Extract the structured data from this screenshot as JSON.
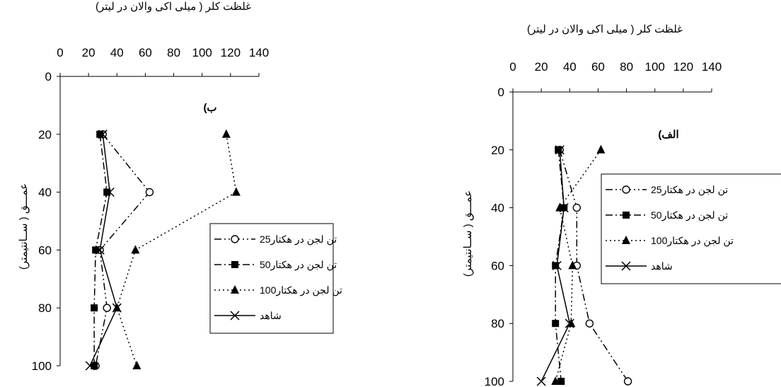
{
  "chart_data": [
    {
      "type": "line",
      "panel_label": "ب)",
      "x_title": "غلظت کلر ( میلی اکی والان در لیتر)",
      "y_title": "عمـــق ( ســانتیمتر)",
      "x_ticks": [
        "0",
        "20",
        "40",
        "60",
        "80",
        "100",
        "120",
        "140"
      ],
      "y_ticks": [
        "0",
        "20",
        "40",
        "60",
        "80",
        "100"
      ],
      "xlim": [
        0,
        140
      ],
      "ylim": [
        0,
        100
      ],
      "y_inverted": true,
      "x_axis_position": "top",
      "grid": false,
      "legend_position": "right",
      "series": [
        {
          "name": "25تن لجن در هکتار",
          "marker": "open-circle",
          "line": "dash-dot-dot",
          "points": [
            [
              30,
              20
            ],
            [
              63,
              40
            ],
            [
              28,
              60
            ],
            [
              33,
              80
            ],
            [
              25,
              100
            ]
          ]
        },
        {
          "name": "50تن لجن در هکتار",
          "marker": "filled-square",
          "line": "dash-dot",
          "points": [
            [
              28,
              20
            ],
            [
              33,
              40
            ],
            [
              25,
              60
            ],
            [
              24,
              80
            ],
            [
              24,
              100
            ]
          ]
        },
        {
          "name": "100تن لجن در هکتار",
          "marker": "filled-triangle",
          "line": "dotted",
          "points": [
            [
              117,
              20
            ],
            [
              124,
              40
            ],
            [
              53,
              60
            ],
            [
              40,
              80
            ],
            [
              54,
              100
            ]
          ]
        },
        {
          "name": "شاهد",
          "marker": "cross",
          "line": "solid",
          "points": [
            [
              30,
              20
            ],
            [
              35,
              40
            ],
            [
              28,
              60
            ],
            [
              40,
              80
            ],
            [
              21,
              100
            ]
          ]
        }
      ]
    },
    {
      "type": "line",
      "panel_label": "الف)",
      "x_title": "غلظت کلر ( میلی اکی والان در لیتر)",
      "y_title": "عمـــق ( ســانتیمتر)",
      "x_ticks": [
        "0",
        "20",
        "40",
        "60",
        "80",
        "100",
        "120",
        "140"
      ],
      "y_ticks": [
        "0",
        "20",
        "40",
        "60",
        "80",
        "100"
      ],
      "xlim": [
        0,
        140
      ],
      "ylim": [
        0,
        100
      ],
      "y_inverted": true,
      "x_axis_position": "top",
      "grid": false,
      "legend_position": "right",
      "series": [
        {
          "name": "25تن لجن در هکتار",
          "marker": "open-circle",
          "line": "dash-dot-dot",
          "points": [
            [
              33,
              20
            ],
            [
              45,
              40
            ],
            [
              45,
              60
            ],
            [
              54,
              80
            ],
            [
              81,
              100
            ]
          ]
        },
        {
          "name": "50تن لجن در هکتار",
          "marker": "filled-square",
          "line": "dash-dot",
          "points": [
            [
              32,
              20
            ],
            [
              36,
              40
            ],
            [
              30,
              60
            ],
            [
              30,
              80
            ],
            [
              34,
              100
            ]
          ]
        },
        {
          "name": "100تن لجن در هکتار",
          "marker": "filled-triangle",
          "line": "dotted",
          "points": [
            [
              62,
              20
            ],
            [
              33,
              40
            ],
            [
              42,
              60
            ],
            [
              41,
              80
            ],
            [
              30,
              100
            ]
          ]
        },
        {
          "name": "شاهد",
          "marker": "cross",
          "line": "solid",
          "points": [
            [
              33,
              20
            ],
            [
              36,
              40
            ],
            [
              31,
              60
            ],
            [
              40,
              80
            ],
            [
              20,
              100
            ]
          ]
        }
      ]
    }
  ]
}
